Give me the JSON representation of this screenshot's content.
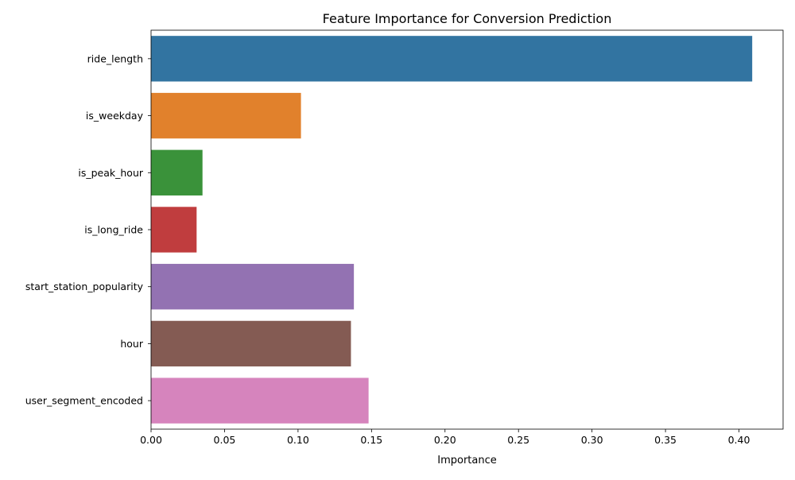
{
  "chart_data": {
    "type": "bar",
    "orientation": "horizontal",
    "title": "Feature Importance for Conversion Prediction",
    "xlabel": "Importance",
    "ylabel": "",
    "xlim": [
      0,
      0.43
    ],
    "xticks": [
      0.0,
      0.05,
      0.1,
      0.15,
      0.2,
      0.25,
      0.3,
      0.35,
      0.4
    ],
    "xtick_labels": [
      "0.00",
      "0.05",
      "0.10",
      "0.15",
      "0.20",
      "0.25",
      "0.30",
      "0.35",
      "0.40"
    ],
    "grid": false,
    "legend": "none",
    "categories": [
      "ride_length",
      "is_weekday",
      "is_peak_hour",
      "is_long_ride",
      "start_station_popularity",
      "hour",
      "user_segment_encoded"
    ],
    "values": [
      0.409,
      0.102,
      0.035,
      0.031,
      0.138,
      0.136,
      0.148
    ],
    "colors": [
      "#3274a1",
      "#e1812c",
      "#3a923a",
      "#c03d3e",
      "#9372b2",
      "#845b53",
      "#d684bd"
    ]
  }
}
